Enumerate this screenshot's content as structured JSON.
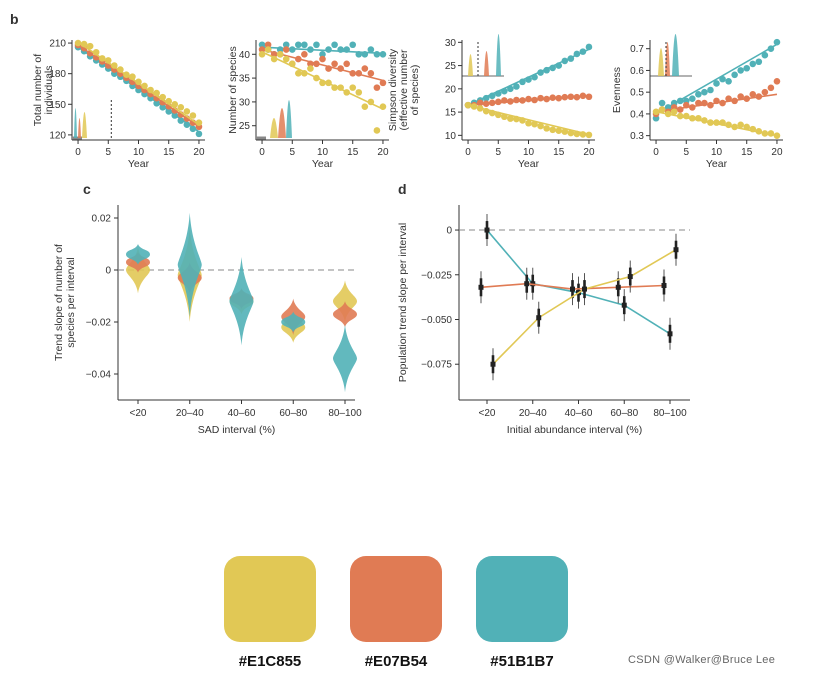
{
  "colors": {
    "yellow": "#E1C855",
    "red": "#E07B54",
    "teal": "#51B1B7",
    "ink": "#333333"
  },
  "panel_b_label": "b",
  "panel_c_label": "c",
  "panel_d_label": "d",
  "palette": {
    "swatches": [
      {
        "label": "#E1C855",
        "color": "#E1C855"
      },
      {
        "label": "#E07B54",
        "color": "#E07B54"
      },
      {
        "label": "#51B1B7",
        "color": "#51B1B7"
      }
    ]
  },
  "watermark": "CSDN @Walker@Bruce Lee",
  "chart_data": [
    {
      "id": "b1",
      "type": "scatter",
      "xlabel": "Year",
      "ylabel": "Total number of\nindividuals",
      "xlim": [
        -1,
        21
      ],
      "ylim": [
        115,
        213
      ],
      "xticks": [
        0,
        5,
        10,
        15,
        20
      ],
      "yticks": [
        120,
        150,
        180,
        210
      ],
      "inset_vline": 5.5,
      "series": [
        {
          "name": "teal",
          "color": "#51B1B7",
          "x": [
            0,
            1,
            2,
            3,
            4,
            5,
            6,
            7,
            8,
            9,
            10,
            11,
            12,
            13,
            14,
            15,
            16,
            17,
            18,
            19,
            20
          ],
          "y": [
            206,
            202,
            197,
            193,
            189,
            185,
            180,
            177,
            173,
            168,
            164,
            160,
            156,
            151,
            147,
            143,
            139,
            134,
            130,
            126,
            121
          ],
          "fit": [
            [
              0,
              206
            ],
            [
              20,
              123
            ]
          ]
        },
        {
          "name": "red",
          "color": "#E07B54",
          "x": [
            0,
            1,
            2,
            3,
            4,
            5,
            6,
            7,
            8,
            9,
            10,
            11,
            12,
            13,
            14,
            15,
            16,
            17,
            18,
            19,
            20
          ],
          "y": [
            208,
            205,
            200,
            196,
            192,
            188,
            184,
            180,
            176,
            172,
            168,
            164,
            160,
            156,
            152,
            148,
            144,
            140,
            136,
            132,
            128
          ],
          "fit": [
            [
              0,
              208
            ],
            [
              20,
              128
            ]
          ]
        },
        {
          "name": "yellow",
          "color": "#E1C855",
          "x": [
            0,
            1,
            2,
            3,
            4,
            5,
            6,
            7,
            8,
            9,
            10,
            11,
            12,
            13,
            14,
            15,
            16,
            17,
            18,
            19,
            20
          ],
          "y": [
            210,
            209,
            207,
            201,
            195,
            193,
            188,
            184,
            179,
            177,
            172,
            168,
            164,
            161,
            157,
            153,
            150,
            147,
            143,
            139,
            132
          ],
          "fit": [
            [
              0,
              211
            ],
            [
              20,
              130
            ]
          ]
        }
      ]
    },
    {
      "id": "b2",
      "type": "scatter",
      "xlabel": "Year",
      "ylabel": "Number of species",
      "xlim": [
        -1,
        21
      ],
      "ylim": [
        22,
        43
      ],
      "xticks": [
        0,
        5,
        10,
        15,
        20
      ],
      "yticks": [
        25,
        30,
        35,
        40
      ],
      "series": [
        {
          "name": "teal",
          "color": "#51B1B7",
          "x": [
            0,
            1,
            2,
            3,
            4,
            5,
            6,
            7,
            8,
            9,
            10,
            11,
            12,
            13,
            14,
            15,
            16,
            17,
            18,
            19,
            20
          ],
          "y": [
            42,
            41,
            40,
            41,
            42,
            41,
            42,
            42,
            41,
            42,
            40,
            41,
            42,
            41,
            41,
            42,
            40,
            40,
            41,
            40,
            40
          ],
          "fit": [
            [
              0,
              41.5
            ],
            [
              20,
              40.2
            ]
          ]
        },
        {
          "name": "red",
          "color": "#E07B54",
          "x": [
            0,
            1,
            2,
            3,
            4,
            5,
            6,
            7,
            8,
            9,
            10,
            11,
            12,
            13,
            14,
            15,
            16,
            17,
            18,
            19,
            20
          ],
          "y": [
            41,
            42,
            40,
            40,
            41,
            38,
            39,
            40,
            38,
            38,
            39,
            37,
            38,
            37,
            38,
            36,
            36,
            37,
            36,
            33,
            34
          ],
          "fit": [
            [
              0,
              41
            ],
            [
              20,
              34.5
            ]
          ]
        },
        {
          "name": "yellow",
          "color": "#E1C855",
          "x": [
            0,
            1,
            2,
            3,
            4,
            5,
            6,
            7,
            8,
            9,
            10,
            11,
            12,
            13,
            14,
            15,
            16,
            17,
            18,
            19,
            20
          ],
          "y": [
            40,
            41,
            39,
            40,
            39,
            38,
            36,
            36,
            37,
            35,
            34,
            34,
            33,
            33,
            32,
            33,
            32,
            29,
            30,
            24,
            29
          ],
          "fit": [
            [
              0,
              40.5
            ],
            [
              20,
              28.5
            ]
          ]
        }
      ]
    },
    {
      "id": "b3",
      "type": "scatter",
      "xlabel": "Year",
      "ylabel": "Simpson diversity\n(effective number\nof species)",
      "xlim": [
        -1,
        21
      ],
      "ylim": [
        9,
        30.5
      ],
      "xticks": [
        0,
        5,
        10,
        15,
        20
      ],
      "yticks": [
        10,
        15,
        20,
        25,
        30
      ],
      "inset_vline": 3,
      "series": [
        {
          "name": "teal",
          "color": "#51B1B7",
          "x": [
            0,
            1,
            2,
            3,
            4,
            5,
            6,
            7,
            8,
            9,
            10,
            11,
            12,
            13,
            14,
            15,
            16,
            17,
            18,
            19,
            20
          ],
          "y": [
            16.5,
            17,
            17.5,
            18,
            18.5,
            19,
            19.5,
            20,
            20.5,
            21.5,
            22,
            22.5,
            23.5,
            24,
            24.5,
            25,
            26,
            26.5,
            27.5,
            28,
            29
          ],
          "fit": [
            [
              0,
              16.5
            ],
            [
              20,
              28.5
            ]
          ]
        },
        {
          "name": "red",
          "color": "#E07B54",
          "x": [
            0,
            1,
            2,
            3,
            4,
            5,
            6,
            7,
            8,
            9,
            10,
            11,
            12,
            13,
            14,
            15,
            16,
            17,
            18,
            19,
            20
          ],
          "y": [
            16.5,
            16.5,
            17,
            16.8,
            17,
            17.2,
            17.5,
            17.3,
            17.6,
            17.5,
            17.8,
            17.6,
            18,
            17.8,
            18.1,
            18,
            18.2,
            18.3,
            18.2,
            18.5,
            18.3
          ],
          "fit": [
            [
              0,
              16.5
            ],
            [
              20,
              18.5
            ]
          ]
        },
        {
          "name": "yellow",
          "color": "#E1C855",
          "x": [
            0,
            1,
            2,
            3,
            4,
            5,
            6,
            7,
            8,
            9,
            10,
            11,
            12,
            13,
            14,
            15,
            16,
            17,
            18,
            19,
            20
          ],
          "y": [
            16.5,
            16.2,
            15.8,
            15.2,
            14.8,
            14.4,
            14,
            13.6,
            13.5,
            13.2,
            12.6,
            12.4,
            12,
            11.5,
            11.2,
            11,
            10.8,
            10.5,
            10.3,
            10.2,
            10.1
          ],
          "fit": [
            [
              0,
              16.5
            ],
            [
              20,
              10.2
            ]
          ]
        }
      ]
    },
    {
      "id": "b4",
      "type": "scatter",
      "xlabel": "Year",
      "ylabel": "Evenness",
      "xlim": [
        -1,
        21
      ],
      "ylim": [
        0.28,
        0.74
      ],
      "xticks": [
        0,
        5,
        10,
        15,
        20
      ],
      "yticks": [
        0.3,
        0.4,
        0.5,
        0.6,
        0.7
      ],
      "inset_vline": 2,
      "series": [
        {
          "name": "teal",
          "color": "#51B1B7",
          "x": [
            0,
            1,
            2,
            3,
            4,
            5,
            6,
            7,
            8,
            9,
            10,
            11,
            12,
            13,
            14,
            15,
            16,
            17,
            18,
            19,
            20
          ],
          "y": [
            0.38,
            0.45,
            0.43,
            0.45,
            0.46,
            0.46,
            0.47,
            0.49,
            0.5,
            0.51,
            0.54,
            0.56,
            0.55,
            0.58,
            0.6,
            0.61,
            0.63,
            0.64,
            0.67,
            0.7,
            0.73
          ],
          "fit": [
            [
              0,
              0.4
            ],
            [
              20,
              0.72
            ]
          ]
        },
        {
          "name": "red",
          "color": "#E07B54",
          "x": [
            0,
            1,
            2,
            3,
            4,
            5,
            6,
            7,
            8,
            9,
            10,
            11,
            12,
            13,
            14,
            15,
            16,
            17,
            18,
            19,
            20
          ],
          "y": [
            0.4,
            0.42,
            0.41,
            0.43,
            0.42,
            0.44,
            0.43,
            0.45,
            0.45,
            0.44,
            0.46,
            0.45,
            0.47,
            0.46,
            0.48,
            0.47,
            0.49,
            0.48,
            0.5,
            0.52,
            0.55
          ],
          "fit": [
            [
              0,
              0.41
            ],
            [
              20,
              0.49
            ]
          ]
        },
        {
          "name": "yellow",
          "color": "#E1C855",
          "x": [
            0,
            1,
            2,
            3,
            4,
            5,
            6,
            7,
            8,
            9,
            10,
            11,
            12,
            13,
            14,
            15,
            16,
            17,
            18,
            19,
            20
          ],
          "y": [
            0.41,
            0.42,
            0.4,
            0.41,
            0.39,
            0.39,
            0.38,
            0.38,
            0.37,
            0.36,
            0.36,
            0.36,
            0.35,
            0.34,
            0.35,
            0.34,
            0.33,
            0.32,
            0.31,
            0.31,
            0.3
          ],
          "fit": [
            [
              0,
              0.41
            ],
            [
              20,
              0.3
            ]
          ]
        }
      ]
    },
    {
      "id": "c",
      "type": "violin",
      "xlabel": "SAD interval (%)",
      "ylabel": "Trend slope of number of\nspecies per interval",
      "categories": [
        "<20",
        "20–40",
        "40–60",
        "60–80",
        "80–100"
      ],
      "ylim": [
        -0.05,
        0.025
      ],
      "yticks": [
        0.02,
        0,
        -0.02,
        -0.04
      ],
      "ytick_labels": [
        "0.02",
        "0",
        "−0.02",
        "−0.04"
      ],
      "series": [
        {
          "name": "yellow",
          "color": "#E1C855",
          "centers": [
            0.0,
            -0.002,
            -0.012,
            -0.022,
            -0.012
          ],
          "spreads": [
            0.009,
            0.018,
            0.005,
            0.006,
            0.008
          ]
        },
        {
          "name": "red",
          "color": "#E07B54",
          "centers": [
            0.003,
            -0.003,
            -0.011,
            -0.018,
            -0.017
          ],
          "spreads": [
            0.004,
            0.006,
            0.004,
            0.007,
            0.005
          ]
        },
        {
          "name": "teal",
          "color": "#51B1B7",
          "centers": [
            0.006,
            0.002,
            -0.012,
            -0.02,
            -0.034
          ],
          "spreads": [
            0.004,
            0.02,
            0.017,
            0.004,
            0.013
          ]
        }
      ]
    },
    {
      "id": "d",
      "type": "line",
      "xlabel": "Initial abundance interval (%)",
      "ylabel": "Population trend slope per interval",
      "categories": [
        "<20",
        "20–40",
        "40–60",
        "60–80",
        "80–100"
      ],
      "ylim": [
        -0.095,
        0.014
      ],
      "yticks": [
        0,
        -0.025,
        -0.05,
        -0.075
      ],
      "ytick_labels": [
        "0",
        "−0.025",
        "−0.050",
        "−0.075"
      ],
      "series": [
        {
          "name": "teal",
          "color": "#51B1B7",
          "values": [
            0.0,
            -0.03,
            -0.035,
            -0.042,
            -0.058
          ]
        },
        {
          "name": "red",
          "color": "#E07B54",
          "values": [
            -0.032,
            -0.03,
            -0.033,
            -0.032,
            -0.031
          ]
        },
        {
          "name": "yellow",
          "color": "#E1C855",
          "values": [
            -0.075,
            -0.049,
            -0.033,
            -0.026,
            -0.011
          ]
        }
      ]
    }
  ]
}
